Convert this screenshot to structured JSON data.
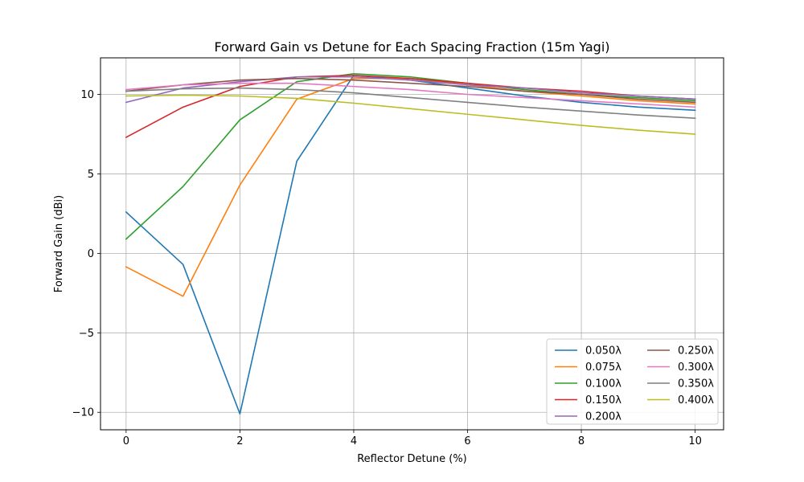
{
  "chart_data": {
    "type": "line",
    "title": "Forward Gain vs Detune for Each Spacing Fraction (15m Yagi)",
    "xlabel": "Reflector Detune (%)",
    "ylabel": "Forward Gain (dBi)",
    "xlim": [
      -0.45,
      10.5
    ],
    "ylim": [
      -11.1,
      12.3
    ],
    "xticks": [
      0,
      2,
      4,
      6,
      8,
      10
    ],
    "xtick_labels": [
      "0",
      "2",
      "4",
      "6",
      "8",
      "10"
    ],
    "yticks": [
      -10,
      -5,
      0,
      5,
      10
    ],
    "ytick_labels": [
      "−10",
      "−5",
      "0",
      "5",
      "10"
    ],
    "grid": true,
    "legend_position": "lower-right",
    "x": [
      0,
      1,
      2,
      3,
      4,
      5,
      6,
      7,
      8,
      9,
      10
    ],
    "series": [
      {
        "name": "0.050λ",
        "color": "#1f77b4",
        "values": [
          2.6,
          -0.7,
          -10.1,
          5.8,
          11.2,
          10.9,
          10.4,
          9.9,
          9.5,
          9.2,
          9.0
        ]
      },
      {
        "name": "0.075λ",
        "color": "#ff7f0e",
        "values": [
          -0.85,
          -2.7,
          4.3,
          9.7,
          11.0,
          11.0,
          10.6,
          10.2,
          9.9,
          9.6,
          9.4
        ]
      },
      {
        "name": "0.100λ",
        "color": "#2ca02c",
        "values": [
          0.9,
          4.2,
          8.4,
          10.8,
          11.3,
          11.1,
          10.7,
          10.3,
          10.0,
          9.8,
          9.6
        ]
      },
      {
        "name": "0.150λ",
        "color": "#d62728",
        "values": [
          7.3,
          9.2,
          10.5,
          11.1,
          11.2,
          11.0,
          10.7,
          10.4,
          10.2,
          9.9,
          9.7
        ]
      },
      {
        "name": "0.200λ",
        "color": "#9467bd",
        "values": [
          9.5,
          10.4,
          10.8,
          11.1,
          11.1,
          10.9,
          10.6,
          10.4,
          10.1,
          9.9,
          9.7
        ]
      },
      {
        "name": "0.250λ",
        "color": "#8c564b",
        "values": [
          10.2,
          10.6,
          10.9,
          11.0,
          10.9,
          10.7,
          10.5,
          10.2,
          10.0,
          9.7,
          9.5
        ]
      },
      {
        "name": "0.300λ",
        "color": "#e377c2",
        "values": [
          10.3,
          10.6,
          10.7,
          10.7,
          10.5,
          10.3,
          10.0,
          9.8,
          9.6,
          9.4,
          9.2
        ]
      },
      {
        "name": "0.350λ",
        "color": "#7f7f7f",
        "values": [
          10.2,
          10.35,
          10.4,
          10.3,
          10.1,
          9.8,
          9.5,
          9.2,
          8.95,
          8.7,
          8.5
        ]
      },
      {
        "name": "0.400λ",
        "color": "#bcbd22",
        "values": [
          9.9,
          9.95,
          9.9,
          9.75,
          9.45,
          9.1,
          8.75,
          8.4,
          8.05,
          7.75,
          7.5
        ]
      }
    ]
  }
}
